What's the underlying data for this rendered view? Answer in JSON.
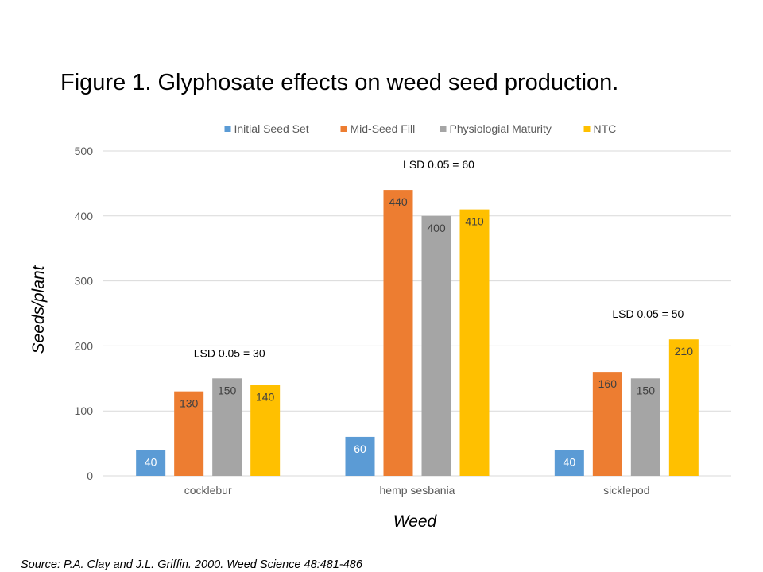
{
  "title": "Figure 1.  Glyphosate effects on weed seed production.",
  "source": "Source: P.A. Clay and J.L. Griffin.  2000.  Weed Science 48:481-486",
  "colors": {
    "grid": "#d9d9d9",
    "axis_text": "#595959",
    "bar_label_on_bar": "#ffffff",
    "bar_label_dark": "#404040"
  },
  "chart_data": {
    "type": "bar",
    "title": "Figure 1.  Glyphosate effects on weed seed production.",
    "xlabel": "Weed",
    "ylabel": "Seeds/plant",
    "ylim": [
      0,
      500
    ],
    "yticks": [
      "0",
      "100",
      "200",
      "300",
      "400",
      "500"
    ],
    "grid": true,
    "legend_position": "top",
    "categories": [
      "cocklebur",
      "hemp sesbania",
      "sicklepod"
    ],
    "series": [
      {
        "name": "Initial Seed Set",
        "color": "#5b9bd5",
        "values": [
          40,
          60,
          40
        ]
      },
      {
        "name": "Mid-Seed Fill",
        "color": "#ed7d31",
        "values": [
          130,
          440,
          160
        ]
      },
      {
        "name": "Physiologial Maturity",
        "color": "#a5a5a5",
        "values": [
          150,
          400,
          150
        ]
      },
      {
        "name": "NTC",
        "color": "#ffc000",
        "values": [
          140,
          410,
          210
        ]
      }
    ],
    "annotations": [
      "LSD 0.05 = 30",
      "LSD 0.05 = 60",
      "LSD 0.05 = 50"
    ]
  }
}
